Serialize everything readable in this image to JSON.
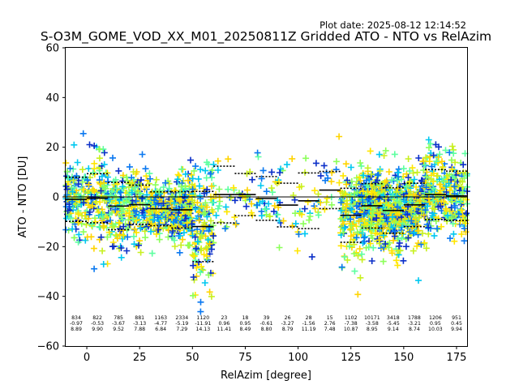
{
  "plot_date": "Plot date: 2025-08-12 12:14:52",
  "chart_data": {
    "type": "scatter",
    "title": "S-O3M_GOME_VOD_XX_M01_20250811Z Gridded ATO - NTO vs RelAzim",
    "xlabel": "RelAzim [degree]",
    "ylabel": "ATO - NTO [DU]",
    "xlim": [
      -10,
      180
    ],
    "ylim": [
      -60,
      60
    ],
    "xticks": [
      0,
      25,
      50,
      75,
      100,
      125,
      150,
      175
    ],
    "yticks": [
      -60,
      -40,
      -20,
      0,
      20,
      40,
      60
    ],
    "marker": "+",
    "colors": {
      "marker_palette": [
        "#0b2fc8",
        "#0a78f0",
        "#00c8f0",
        "#5dffa0",
        "#8cff5a",
        "#c8f020",
        "#ffe600",
        "#ffd400"
      ],
      "mean_line": "#000000",
      "zero_line": "#000000"
    },
    "zero_line": 0,
    "bins": [
      {
        "x0": -10,
        "x1": 0,
        "n": 834,
        "mean": -0.97,
        "std": 8.89
      },
      {
        "x0": 0,
        "x1": 10,
        "n": 822,
        "mean": -0.53,
        "std": 9.9
      },
      {
        "x0": 10,
        "x1": 20,
        "n": 785,
        "mean": -3.67,
        "std": 9.52
      },
      {
        "x0": 20,
        "x1": 30,
        "n": 881,
        "mean": -3.13,
        "std": 7.88
      },
      {
        "x0": 30,
        "x1": 40,
        "n": 1163,
        "mean": -4.77,
        "std": 6.84
      },
      {
        "x0": 40,
        "x1": 50,
        "n": 2334,
        "mean": -5.19,
        "std": 7.29
      },
      {
        "x0": 50,
        "x1": 60,
        "n": 1120,
        "mean": -11.91,
        "std": 14.13
      },
      {
        "x0": 60,
        "x1": 70,
        "n": 23,
        "mean": 0.96,
        "std": 11.41
      },
      {
        "x0": 70,
        "x1": 80,
        "n": 18,
        "mean": 0.95,
        "std": 8.49
      },
      {
        "x0": 80,
        "x1": 90,
        "n": 39,
        "mean": -0.61,
        "std": 8.8
      },
      {
        "x0": 90,
        "x1": 100,
        "n": 26,
        "mean": -3.27,
        "std": 8.79
      },
      {
        "x0": 100,
        "x1": 110,
        "n": 28,
        "mean": -1.56,
        "std": 11.19
      },
      {
        "x0": 110,
        "x1": 120,
        "n": 15,
        "mean": 2.76,
        "std": 7.48
      },
      {
        "x0": 120,
        "x1": 130,
        "n": 1102,
        "mean": -7.38,
        "std": 10.87
      },
      {
        "x0": 130,
        "x1": 140,
        "n": 10171,
        "mean": -3.58,
        "std": 8.95
      },
      {
        "x0": 140,
        "x1": 150,
        "n": 3418,
        "mean": -5.45,
        "std": 9.14
      },
      {
        "x0": 150,
        "x1": 160,
        "n": 1788,
        "mean": -3.21,
        "std": 8.74
      },
      {
        "x0": 160,
        "x1": 170,
        "n": 1206,
        "mean": 0.95,
        "std": 10.03
      },
      {
        "x0": 170,
        "x1": 180,
        "n": 951,
        "mean": 0.45,
        "std": 9.94
      }
    ]
  }
}
